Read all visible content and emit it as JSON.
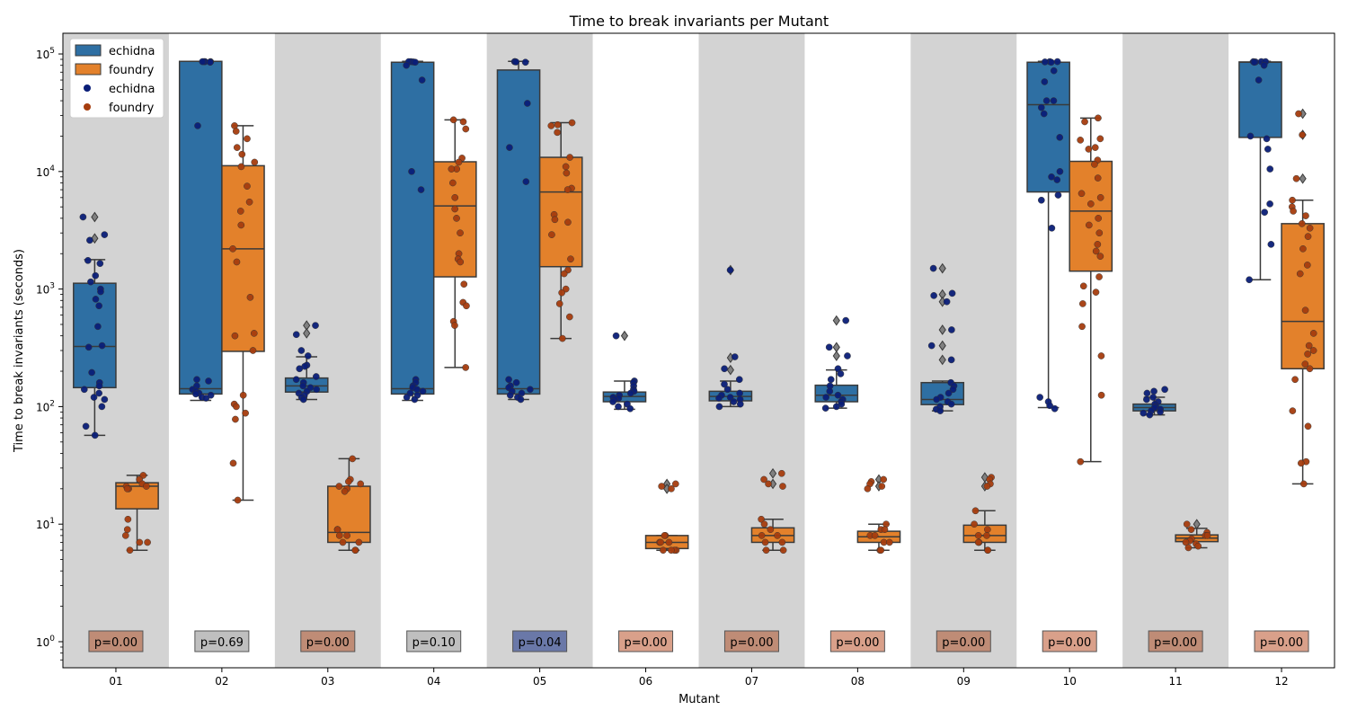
{
  "chart_data": {
    "type": "box",
    "title": "Time to break invariants per Mutant",
    "xlabel": "Mutant",
    "ylabel": "Time to break invariants (seconds)",
    "yscale": "log",
    "ylim": [
      0.6,
      150000
    ],
    "yticks": [
      {
        "value": 1,
        "base": "10",
        "exp": "0"
      },
      {
        "value": 10,
        "base": "10",
        "exp": "1"
      },
      {
        "value": 100,
        "base": "10",
        "exp": "2"
      },
      {
        "value": 1000,
        "base": "10",
        "exp": "3"
      },
      {
        "value": 10000,
        "base": "10",
        "exp": "4"
      },
      {
        "value": 100000,
        "base": "10",
        "exp": "5"
      }
    ],
    "categories": [
      "01",
      "02",
      "03",
      "04",
      "05",
      "06",
      "07",
      "08",
      "09",
      "10",
      "11",
      "12"
    ],
    "legend": {
      "position": "top-left",
      "entries": [
        {
          "label": "echidna",
          "kind": "box",
          "color": "#2e6fa3"
        },
        {
          "label": "foundry",
          "kind": "box",
          "color": "#e3812b"
        },
        {
          "label": "echidna",
          "kind": "dot",
          "color": "#0a1e78"
        },
        {
          "label": "foundry",
          "kind": "dot",
          "color": "#a63d0e"
        }
      ]
    },
    "colors": {
      "echidna_box": "#2e6fa3",
      "foundry_box": "#e3812b",
      "echidna_dot": "#0a1e78",
      "foundry_dot": "#a63d0e",
      "shade": "#d3d3d3",
      "outline": "#3a3a3a"
    },
    "shaded_categories": [
      "01",
      "03",
      "05",
      "07",
      "09",
      "11"
    ],
    "series": [
      {
        "name": "echidna",
        "boxes": [
          {
            "category": "01",
            "whisker_low": 57,
            "q1": 145,
            "median": 325,
            "q3": 1120,
            "whisker_high": 1780,
            "fliers": [
              4100,
              2700
            ]
          },
          {
            "category": "02",
            "whisker_low": 113,
            "q1": 128,
            "median": 142,
            "q3": 86500,
            "whisker_high": 86500,
            "fliers": []
          },
          {
            "category": "03",
            "whisker_low": 115,
            "q1": 133,
            "median": 150,
            "q3": 175,
            "whisker_high": 265,
            "fliers": [
              490,
              420
            ]
          },
          {
            "category": "04",
            "whisker_low": 113,
            "q1": 128,
            "median": 142,
            "q3": 85000,
            "whisker_high": 86500,
            "fliers": []
          },
          {
            "category": "05",
            "whisker_low": 115,
            "q1": 128,
            "median": 142,
            "q3": 73000,
            "whisker_high": 86500,
            "fliers": []
          },
          {
            "category": "06",
            "whisker_low": 95,
            "q1": 110,
            "median": 122,
            "q3": 133,
            "whisker_high": 165,
            "fliers": [
              400
            ]
          },
          {
            "category": "07",
            "whisker_low": 100,
            "q1": 112,
            "median": 122,
            "q3": 135,
            "whisker_high": 165,
            "fliers": [
              1450,
              260,
              205
            ]
          },
          {
            "category": "08",
            "whisker_low": 97,
            "q1": 110,
            "median": 125,
            "q3": 152,
            "whisker_high": 205,
            "fliers": [
              540,
              320,
              270
            ]
          },
          {
            "category": "09",
            "whisker_low": 92,
            "q1": 104,
            "median": 115,
            "q3": 160,
            "whisker_high": 165,
            "fliers": [
              1500,
              900,
              780,
              450,
              330,
              250
            ]
          },
          {
            "category": "10",
            "whisker_low": 98,
            "q1": 6700,
            "median": 37000,
            "q3": 85000,
            "whisker_high": 86500,
            "fliers": []
          },
          {
            "category": "11",
            "whisker_low": 85,
            "q1": 92,
            "median": 98,
            "q3": 105,
            "whisker_high": 120,
            "fliers": []
          },
          {
            "category": "12",
            "whisker_low": 1200,
            "q1": 19500,
            "median": 85000,
            "q3": 85500,
            "whisker_high": 86500,
            "fliers": []
          }
        ],
        "points": [
          {
            "category": "01",
            "values": [
              4100,
              2900,
              2600,
              1750,
              1650,
              1300,
              1150,
              1000,
              950,
              820,
              720,
              480,
              330,
              320,
              195,
              160,
              150,
              140,
              130,
              120,
              115,
              100,
              68,
              57
            ]
          },
          {
            "category": "02",
            "values": [
              86000,
              86000,
              86000,
              86000,
              85500,
              85000,
              24500,
              170,
              165,
              150,
              140,
              135,
              130,
              128,
              125,
              120,
              118
            ]
          },
          {
            "category": "03",
            "values": [
              490,
              410,
              300,
              270,
              225,
              220,
              210,
              180,
              170,
              160,
              150,
              145,
              140,
              135,
              130,
              125,
              120,
              115
            ]
          },
          {
            "category": "04",
            "values": [
              86000,
              86000,
              85500,
              85000,
              80000,
              60000,
              10000,
              7000,
              170,
              160,
              150,
              145,
              140,
              135,
              130,
              125,
              120,
              115
            ]
          },
          {
            "category": "05",
            "values": [
              86000,
              86000,
              85500,
              85000,
              38000,
              16000,
              8200,
              170,
              160,
              150,
              145,
              140,
              135,
              130,
              125,
              120,
              115
            ]
          },
          {
            "category": "06",
            "values": [
              400,
              165,
              160,
              150,
              140,
              135,
              130,
              125,
              120,
              118,
              115,
              110,
              105,
              100,
              96
            ]
          },
          {
            "category": "07",
            "values": [
              1450,
              265,
              210,
              170,
              155,
              140,
              130,
              125,
              120,
              118,
              115,
              110,
              105,
              100
            ]
          },
          {
            "category": "08",
            "values": [
              540,
              320,
              270,
              210,
              190,
              170,
              150,
              135,
              125,
              120,
              115,
              110,
              105,
              100,
              97
            ]
          },
          {
            "category": "09",
            "values": [
              1500,
              920,
              880,
              780,
              450,
              330,
              250,
              160,
              150,
              140,
              130,
              120,
              115,
              110,
              105,
              100,
              95,
              92
            ]
          },
          {
            "category": "10",
            "values": [
              86000,
              86000,
              85500,
              85000,
              72000,
              58000,
              40000,
              40000,
              35000,
              31000,
              19500,
              10000,
              9000,
              8500,
              6300,
              5700,
              3300,
              120,
              110,
              102,
              96
            ]
          },
          {
            "category": "11",
            "values": [
              140,
              135,
              130,
              120,
              115,
              110,
              105,
              100,
              98,
              95,
              92,
              90,
              88,
              85
            ]
          },
          {
            "category": "12",
            "values": [
              86000,
              86000,
              86000,
              85500,
              85000,
              80000,
              60000,
              20000,
              19000,
              15500,
              10500,
              5300,
              4500,
              2400,
              1200
            ]
          }
        ]
      },
      {
        "name": "foundry",
        "boxes": [
          {
            "category": "01",
            "whisker_low": 6,
            "q1": 13.5,
            "median": 21,
            "q3": 22.5,
            "whisker_high": 26,
            "fliers": []
          },
          {
            "category": "02",
            "whisker_low": 16,
            "q1": 295,
            "median": 2200,
            "q3": 11200,
            "whisker_high": 24500,
            "fliers": []
          },
          {
            "category": "03",
            "whisker_low": 6,
            "q1": 7,
            "median": 8.5,
            "q3": 21,
            "whisker_high": 36,
            "fliers": []
          },
          {
            "category": "04",
            "whisker_low": 215,
            "q1": 1270,
            "median": 5100,
            "q3": 12100,
            "whisker_high": 27500,
            "fliers": []
          },
          {
            "category": "05",
            "whisker_low": 380,
            "q1": 1550,
            "median": 6700,
            "q3": 13200,
            "whisker_high": 26000,
            "fliers": []
          },
          {
            "category": "06",
            "whisker_low": 6,
            "q1": 6.2,
            "median": 7,
            "q3": 8,
            "whisker_high": 8,
            "fliers": [
              22,
              20
            ]
          },
          {
            "category": "07",
            "whisker_low": 6,
            "q1": 7,
            "median": 8,
            "q3": 9.3,
            "whisker_high": 11,
            "fliers": [
              27,
              22
            ]
          },
          {
            "category": "08",
            "whisker_low": 6,
            "q1": 7,
            "median": 7.8,
            "q3": 8.7,
            "whisker_high": 10,
            "fliers": [
              24,
              21
            ]
          },
          {
            "category": "09",
            "whisker_low": 6,
            "q1": 7,
            "median": 8,
            "q3": 9.8,
            "whisker_high": 13,
            "fliers": [
              25,
              21
            ]
          },
          {
            "category": "10",
            "whisker_low": 34,
            "q1": 1420,
            "median": 4600,
            "q3": 12200,
            "whisker_high": 28500,
            "fliers": []
          },
          {
            "category": "11",
            "whisker_low": 6.3,
            "q1": 7.1,
            "median": 7.6,
            "q3": 8.1,
            "whisker_high": 9.2,
            "fliers": [
              10
            ]
          },
          {
            "category": "12",
            "whisker_low": 22,
            "q1": 210,
            "median": 530,
            "q3": 3600,
            "whisker_high": 5700,
            "fliers": [
              31000,
              20500,
              8700
            ]
          }
        ],
        "points": [
          {
            "category": "01",
            "values": [
              26,
              24,
              22,
              21,
              21,
              20,
              20,
              11,
              9,
              8,
              7,
              7,
              6
            ]
          },
          {
            "category": "02",
            "values": [
              24500,
              22000,
              19000,
              16000,
              14000,
              12000,
              11000,
              7500,
              5500,
              4600,
              3500,
              2200,
              1700,
              850,
              420,
              400,
              300,
              125,
              105,
              100,
              88,
              78,
              33,
              16
            ]
          },
          {
            "category": "03",
            "values": [
              36,
              24,
              23,
              22,
              21,
              20,
              19,
              9,
              9,
              8,
              8,
              7,
              7,
              6,
              6
            ]
          },
          {
            "category": "04",
            "values": [
              27500,
              26500,
              23000,
              13000,
              12000,
              10500,
              10500,
              8000,
              6000,
              4800,
              4000,
              3000,
              2000,
              1800,
              1700,
              1100,
              770,
              720,
              530,
              490,
              215
            ]
          },
          {
            "category": "05",
            "values": [
              26000,
              25000,
              24500,
              21500,
              13200,
              11000,
              9700,
              7200,
              7000,
              4300,
              3900,
              3700,
              2900,
              1800,
              1450,
              1350,
              1000,
              930,
              750,
              580,
              380
            ]
          },
          {
            "category": "06",
            "values": [
              22,
              21,
              20,
              8,
              8,
              7,
              7,
              7,
              6,
              6,
              6,
              6
            ]
          },
          {
            "category": "07",
            "values": [
              27,
              24,
              22,
              21,
              11,
              10,
              9,
              8,
              8,
              7,
              7,
              6,
              6
            ]
          },
          {
            "category": "08",
            "values": [
              24,
              23,
              22,
              21,
              20,
              10,
              9,
              9,
              8,
              8,
              7,
              7,
              6,
              6
            ]
          },
          {
            "category": "09",
            "values": [
              25,
              24,
              22,
              21,
              13,
              10,
              9,
              8,
              8,
              7,
              7,
              6,
              6
            ]
          },
          {
            "category": "10",
            "values": [
              28500,
              26500,
              19000,
              18500,
              16000,
              15500,
              12500,
              11500,
              8800,
              6500,
              6000,
              5300,
              4000,
              3500,
              3000,
              2400,
              2100,
              1900,
              1270,
              1060,
              940,
              750,
              480,
              270,
              125,
              34
            ]
          },
          {
            "category": "11",
            "values": [
              10,
              9,
              8.5,
              8,
              8,
              7.5,
              7.2,
              7,
              6.8,
              6.5,
              6.3
            ]
          },
          {
            "category": "12",
            "values": [
              31000,
              20500,
              8700,
              5700,
              5000,
              4600,
              4200,
              3600,
              3300,
              2800,
              2200,
              1600,
              1350,
              660,
              420,
              330,
              300,
              280,
              230,
              210,
              170,
              92,
              68,
              34,
              33,
              22
            ]
          }
        ]
      }
    ],
    "annotations": [
      {
        "category": "01",
        "text": "p=0.00",
        "fill": "#bf8c76"
      },
      {
        "category": "02",
        "text": "p=0.69",
        "fill": "#bfbfbf"
      },
      {
        "category": "03",
        "text": "p=0.00",
        "fill": "#bf8c76"
      },
      {
        "category": "04",
        "text": "p=0.10",
        "fill": "#bfbfbf"
      },
      {
        "category": "05",
        "text": "p=0.04",
        "fill": "#6a78a8"
      },
      {
        "category": "06",
        "text": "p=0.00",
        "fill": "#d9a08a"
      },
      {
        "category": "07",
        "text": "p=0.00",
        "fill": "#bf8c76"
      },
      {
        "category": "08",
        "text": "p=0.00",
        "fill": "#d9a08a"
      },
      {
        "category": "09",
        "text": "p=0.00",
        "fill": "#bf8c76"
      },
      {
        "category": "10",
        "text": "p=0.00",
        "fill": "#d9a08a"
      },
      {
        "category": "11",
        "text": "p=0.00",
        "fill": "#bf8c76"
      },
      {
        "category": "12",
        "text": "p=0.00",
        "fill": "#d9a08a"
      }
    ]
  }
}
